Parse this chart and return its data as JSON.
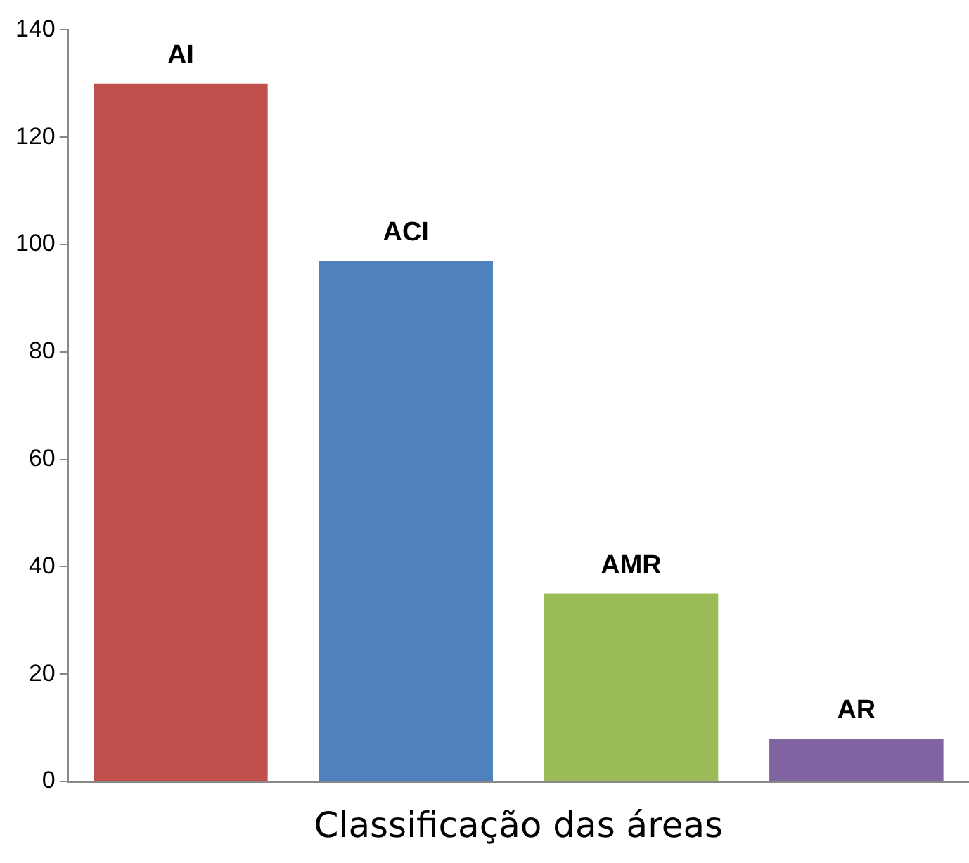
{
  "chart_data": {
    "type": "bar",
    "xlabel": "Classificação das áreas",
    "categories": [
      "AI",
      "ACI",
      "AMR",
      "AR"
    ],
    "values": [
      130,
      97,
      35,
      8
    ],
    "colors": [
      "#c0504d",
      "#4f81bd",
      "#9bbb59",
      "#8064a2"
    ],
    "ylim": [
      0,
      140
    ],
    "yticks": [
      0,
      20,
      40,
      60,
      80,
      100,
      120,
      140
    ],
    "grid": false,
    "legend": false,
    "tick_labels": "y"
  }
}
